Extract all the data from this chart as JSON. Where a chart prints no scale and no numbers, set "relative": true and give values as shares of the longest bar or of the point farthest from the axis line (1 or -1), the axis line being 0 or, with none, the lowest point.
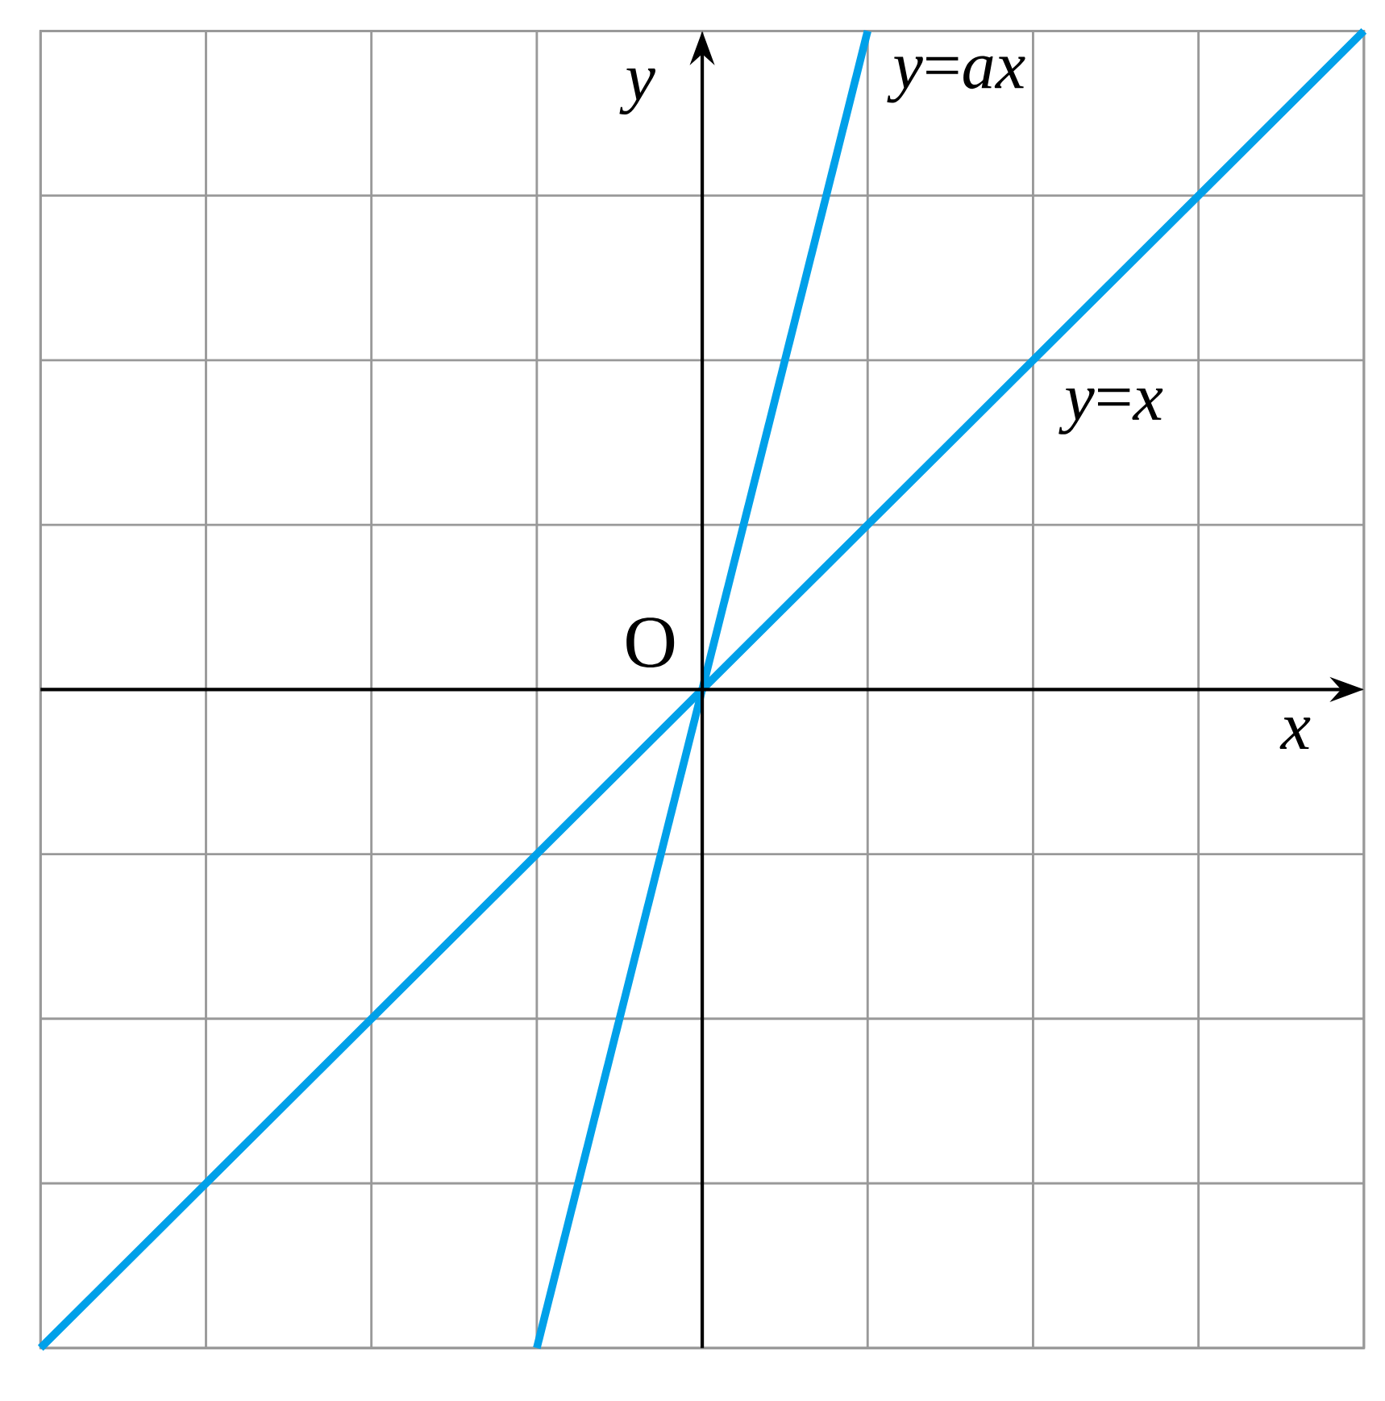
{
  "chart_data": {
    "type": "line",
    "relative": true,
    "xlabel": "x",
    "ylabel": "y",
    "annotations": [
      "O"
    ],
    "grid": true,
    "categories": [
      null,
      null,
      null,
      null,
      null,
      null,
      null,
      null,
      null
    ],
    "series": [
      {
        "name": "*y*=*ax*",
        "color": "#00a0e9",
        "values": [
          null,
          null,
          null,
          -1,
          0,
          1,
          null,
          null,
          null
        ]
      },
      {
        "name": "*y*=*x*",
        "color": "#00a0e9",
        "values": [
          -1,
          -0.75,
          -0.5,
          -0.25,
          0,
          0.25,
          0.5,
          0.75,
          1
        ]
      }
    ]
  }
}
